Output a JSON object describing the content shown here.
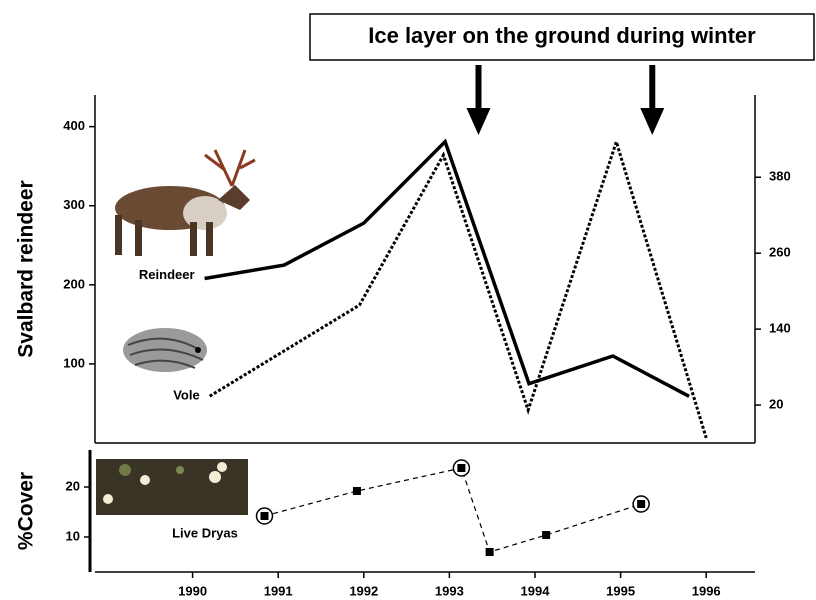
{
  "chart_data": [
    {
      "type": "line",
      "annotation": {
        "text": "Ice layer on the ground during winter",
        "arrows_x": [
          1993.34,
          1995.37
        ]
      },
      "ylabel": "Svalbard reindeer",
      "xlim": [
        1988.86,
        1996.57
      ],
      "ylim": [
        0,
        440
      ],
      "yticks": [
        100,
        200,
        300,
        400
      ],
      "y2lim": [
        -40,
        510
      ],
      "y2ticks": [
        20,
        140,
        260,
        380
      ],
      "series": [
        {
          "name": "Reindeer",
          "color": "#000000",
          "dash": false,
          "x": [
            1990.14,
            1991.07,
            1992.0,
            1992.95,
            1993.93,
            1994.91,
            1995.8
          ],
          "values": [
            208,
            225,
            278,
            381,
            75,
            110,
            59
          ]
        },
        {
          "name": "Vole",
          "color": "#000000",
          "dash": true,
          "axis": "y2",
          "x": [
            1990.2,
            1991.95,
            1992.93,
            1993.92,
            1994.95,
            1996.0
          ],
          "values": [
            34,
            178,
            415,
            12,
            436,
            -32
          ]
        }
      ]
    },
    {
      "type": "line",
      "ylabel": "%Cover",
      "xlim": [
        1988.86,
        1996.57
      ],
      "ylim": [
        3,
        27.4
      ],
      "yticks": [
        10,
        20
      ],
      "xticks": [
        1990,
        1991,
        1992,
        1993,
        1994,
        1995,
        1996
      ],
      "series": [
        {
          "name": "Live Dryas",
          "color": "#000000",
          "dash": true,
          "x": [
            1990.84,
            1991.92,
            1993.14,
            1993.47,
            1994.13,
            1995.24
          ],
          "values": [
            14.2,
            19.2,
            23.8,
            7.0,
            10.4,
            16.6
          ],
          "circled": [
            true,
            false,
            true,
            false,
            false,
            true
          ]
        }
      ]
    }
  ]
}
